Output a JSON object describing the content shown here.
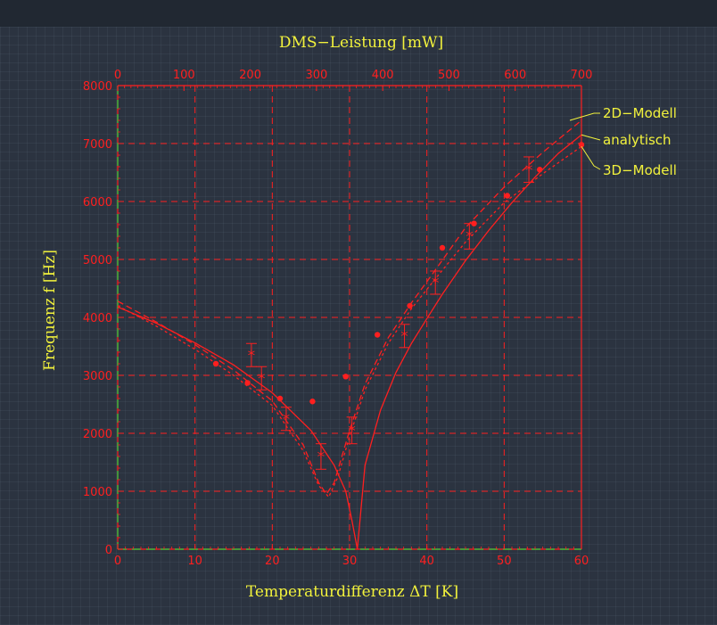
{
  "chart_data": {
    "type": "line",
    "top_axis": {
      "label": "DMS−Leistung [mW]",
      "ticks": [
        "0",
        "100",
        "200",
        "300",
        "400",
        "500",
        "600",
        "700"
      ],
      "range": [
        0,
        700
      ]
    },
    "xlabel": "Temperaturdifferenz ΔT [K]",
    "ylabel": "Frequenz f [Hz]",
    "xlim": [
      0,
      60
    ],
    "ylim": [
      0,
      8000
    ],
    "x_ticks": [
      "0",
      "10",
      "20",
      "30",
      "40",
      "50",
      "60"
    ],
    "y_ticks": [
      "0",
      "1000",
      "2000",
      "3000",
      "4000",
      "5000",
      "6000",
      "7000",
      "8000"
    ],
    "grid": true,
    "series": [
      {
        "name": "analytisch",
        "style": "solid",
        "x": [
          0,
          5,
          10,
          15,
          20,
          25,
          28,
          29.5,
          30.3,
          30.8,
          31,
          32,
          34,
          36,
          38,
          40,
          42,
          45,
          48,
          51,
          54,
          57,
          60
        ],
        "y": [
          4180,
          3900,
          3560,
          3180,
          2700,
          2050,
          1450,
          1000,
          500,
          150,
          0,
          1450,
          2400,
          3050,
          3550,
          3980,
          4400,
          4980,
          5500,
          5980,
          6420,
          6830,
          7150
        ]
      },
      {
        "name": "2D−Modell",
        "style": "dashed",
        "x": [
          0,
          5,
          10,
          15,
          20,
          24,
          26,
          27,
          28,
          30,
          32,
          35,
          38,
          41,
          45,
          50,
          55,
          60
        ],
        "y": [
          4280,
          3920,
          3530,
          3090,
          2560,
          1800,
          1150,
          950,
          1150,
          2050,
          2850,
          3650,
          4250,
          4800,
          5550,
          6250,
          6850,
          7400
        ]
      },
      {
        "name": "3D−Modell",
        "style": "dashed",
        "x": [
          0,
          5,
          10,
          15,
          20,
          24,
          26,
          27.3,
          28.5,
          30,
          32,
          35,
          38,
          41,
          45,
          50,
          55,
          60
        ],
        "y": [
          4200,
          3850,
          3450,
          3000,
          2480,
          1700,
          1100,
          900,
          1250,
          1950,
          2750,
          3550,
          4150,
          4650,
          5300,
          5980,
          6480,
          6950
        ]
      }
    ],
    "measured_points": {
      "x": [
        12.7,
        16.8,
        21,
        25.2,
        29.5,
        33.6,
        37.8,
        42,
        46.1,
        50.4,
        54.6,
        60
      ],
      "y": [
        3200,
        2870,
        2600,
        2550,
        2980,
        3700,
        4200,
        5200,
        5620,
        6100,
        6550,
        6980
      ]
    },
    "error_points": {
      "x": [
        17.3,
        18.6,
        21.8,
        26.3,
        30.3,
        37.1,
        41.1,
        45.5,
        53.2
      ],
      "y": [
        3350,
        2950,
        2250,
        1600,
        2050,
        3680,
        4600,
        5400,
        6550
      ],
      "err": [
        200,
        200,
        200,
        220,
        230,
        200,
        200,
        220,
        220
      ]
    }
  }
}
